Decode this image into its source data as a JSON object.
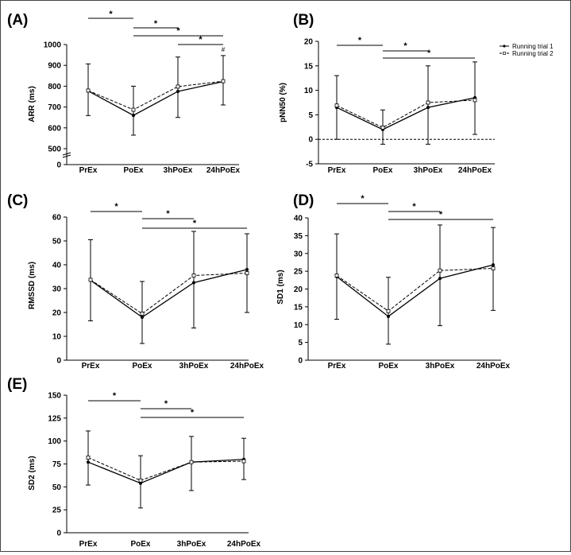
{
  "legend": {
    "entries": [
      {
        "name": "Running trial 1",
        "style": "solid"
      },
      {
        "name": "Running trial 2",
        "style": "dashed"
      }
    ]
  },
  "chart_data": [
    {
      "letter": "(A)",
      "type": "line",
      "ylabel": "ARR (ms)",
      "categories": [
        "PrEx",
        "PoEx",
        "3hPoEx",
        "24hPoEx"
      ],
      "yaxis": {
        "ticks": [
          500,
          600,
          700,
          800,
          900,
          1000
        ],
        "labels": [
          "500",
          "600",
          "700",
          "800",
          "900",
          "1000"
        ],
        "break_below": 500,
        "zero_label": "0"
      },
      "series": [
        {
          "name": "Running trial 1",
          "values": [
            777,
            660,
            775,
            822
          ],
          "err_up": [
            130,
            140,
            165,
            125
          ],
          "err_down": [
            118,
            95,
            125,
            112
          ]
        },
        {
          "name": "Running trial 2",
          "values": [
            779,
            687,
            798,
            824
          ],
          "err_up": [
            0,
            0,
            0,
            0
          ],
          "err_down": [
            0,
            0,
            0,
            0
          ]
        }
      ],
      "significance": [
        {
          "from": 0,
          "to": 1,
          "label": "*"
        },
        {
          "from": 1,
          "to": 2,
          "label": "*"
        },
        {
          "from": 1,
          "to": 3,
          "label": "*"
        },
        {
          "from": 2,
          "to": 3,
          "label": "*"
        }
      ],
      "annotations": [
        {
          "category": 3,
          "label": "#"
        }
      ]
    },
    {
      "letter": "(B)",
      "type": "line",
      "ylabel": "pNN50 (%)",
      "categories": [
        "PrEx",
        "PoEx",
        "3hPoEx",
        "24hPoEx"
      ],
      "yaxis": {
        "ticks": [
          -5,
          0,
          5,
          10,
          15,
          20
        ],
        "labels": [
          "-5",
          "0",
          "5",
          "10",
          "15",
          "20"
        ],
        "zero_line": true
      },
      "series": [
        {
          "name": "Running trial 1",
          "values": [
            6.5,
            2.0,
            6.5,
            8.5
          ],
          "err_up": [
            6.5,
            4.0,
            8.5,
            7.3
          ],
          "err_down": [
            6.5,
            3.0,
            7.5,
            7.5
          ]
        },
        {
          "name": "Running trial 2",
          "values": [
            6.9,
            2.4,
            7.5,
            8.0
          ],
          "err_up": [
            0,
            0,
            0,
            0
          ],
          "err_down": [
            0,
            0,
            0,
            0
          ]
        }
      ],
      "significance": [
        {
          "from": 0,
          "to": 1,
          "label": "*"
        },
        {
          "from": 1,
          "to": 2,
          "label": "*"
        },
        {
          "from": 1,
          "to": 3,
          "label": "*"
        }
      ]
    },
    {
      "letter": "(C)",
      "type": "line",
      "ylabel": "RMSSD (ms)",
      "categories": [
        "PrEx",
        "PoEx",
        "3hPoEx",
        "24hPoEx"
      ],
      "yaxis": {
        "ticks": [
          10,
          20,
          30,
          40,
          50,
          60
        ],
        "labels": [
          "10",
          "20",
          "30",
          "40",
          "50",
          "60"
        ],
        "zero_label": "0"
      },
      "series": [
        {
          "name": "Running trial 1",
          "values": [
            33.5,
            18.0,
            32.5,
            38.0
          ],
          "err_up": [
            17.0,
            15.0,
            21.5,
            15.0
          ],
          "err_down": [
            17.0,
            11.0,
            19.0,
            18.0
          ]
        },
        {
          "name": "Running trial 2",
          "values": [
            33.7,
            19.5,
            35.5,
            36.5
          ],
          "err_up": [
            0,
            0,
            0,
            0
          ],
          "err_down": [
            0,
            0,
            0,
            0
          ]
        }
      ],
      "significance": [
        {
          "from": 0,
          "to": 1,
          "label": "*"
        },
        {
          "from": 1,
          "to": 2,
          "label": "*"
        },
        {
          "from": 1,
          "to": 3,
          "label": "*"
        }
      ]
    },
    {
      "letter": "(D)",
      "type": "line",
      "ylabel": "SD1 (ms)",
      "categories": [
        "PrEx",
        "PoEx",
        "3hPoEx",
        "24hPoEx"
      ],
      "yaxis": {
        "ticks": [
          0,
          5,
          10,
          15,
          20,
          25,
          30,
          35,
          40
        ],
        "labels": [
          "0",
          "5",
          "10",
          "15",
          "20",
          "25",
          "30",
          "35",
          "40"
        ]
      },
      "series": [
        {
          "name": "Running trial 1",
          "values": [
            23.5,
            12.3,
            23.0,
            26.8
          ],
          "err_up": [
            12.0,
            11.0,
            15.0,
            10.5
          ],
          "err_down": [
            12.0,
            7.8,
            13.3,
            12.8
          ]
        },
        {
          "name": "Running trial 2",
          "values": [
            23.8,
            13.8,
            25.2,
            25.8
          ],
          "err_up": [
            0,
            0,
            0,
            0
          ],
          "err_down": [
            0,
            0,
            0,
            0
          ]
        }
      ],
      "significance": [
        {
          "from": 0,
          "to": 1,
          "label": "*"
        },
        {
          "from": 1,
          "to": 2,
          "label": "*"
        },
        {
          "from": 1,
          "to": 3,
          "label": "*"
        }
      ]
    },
    {
      "letter": "(E)",
      "type": "line",
      "ylabel": "SD2 (ms)",
      "categories": [
        "PrEx",
        "PoEx",
        "3hPoEx",
        "24hPoEx"
      ],
      "yaxis": {
        "ticks": [
          25,
          50,
          75,
          100,
          125,
          150
        ],
        "labels": [
          "25",
          "50",
          "75",
          "100",
          "125",
          "150"
        ],
        "zero_label": "0"
      },
      "series": [
        {
          "name": "Running trial 1",
          "values": [
            77,
            54,
            77,
            80
          ],
          "err_up": [
            34,
            30,
            28,
            23
          ],
          "err_down": [
            25,
            27,
            31,
            22
          ]
        },
        {
          "name": "Running trial 2",
          "values": [
            82,
            57,
            77,
            78
          ],
          "err_up": [
            0,
            0,
            0,
            0
          ],
          "err_down": [
            0,
            0,
            0,
            0
          ]
        }
      ],
      "significance": [
        {
          "from": 0,
          "to": 1,
          "label": "*"
        },
        {
          "from": 1,
          "to": 2,
          "label": "*"
        },
        {
          "from": 1,
          "to": 3,
          "label": "*"
        }
      ]
    }
  ]
}
